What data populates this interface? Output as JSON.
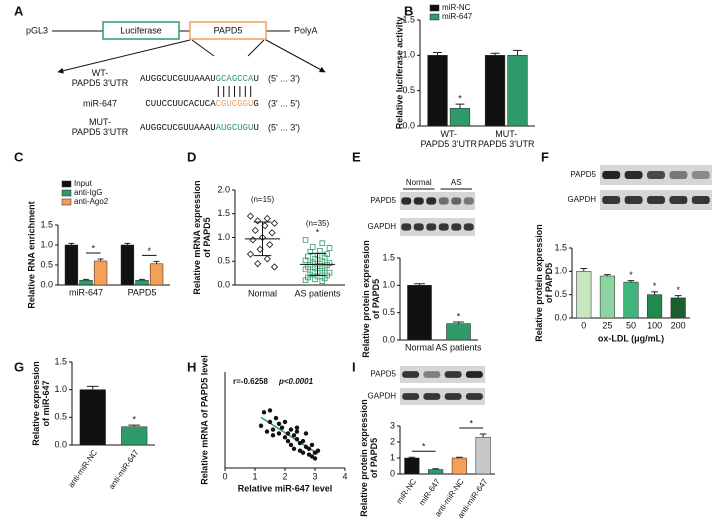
{
  "diagram": {
    "panel": "A",
    "vector": [
      "pGL3",
      "Luciferase",
      "PAPD5",
      "PolyA"
    ],
    "wt_label": "WT-\nPAPD5 3'UTR",
    "wt_sequence": [
      "AUGGCUCGUUAAAU",
      "GCAGCCA",
      "U"
    ],
    "wt_direction": "(5' ... 3')",
    "mir_label": "miR-647",
    "mir_sequence": [
      "CUUCCUUCACUCA",
      "CGUCGGU",
      "G"
    ],
    "mir_direction": "(3' ... 5')",
    "mut_label": "MUT-\nPAPD5 3'UTR",
    "mut_sequence": [
      "AUGGCUCGUUAAAU",
      "AUGCUGU",
      "U"
    ],
    "mut_direction": "(5' ... 3')"
  },
  "chart_data": [
    {
      "panel": "B",
      "type": "bar",
      "ylabel": "Relative luciferase activity",
      "categories": [
        "WT-\nPAPD5 3'UTR",
        "MUT-\nPAPD5 3'UTR"
      ],
      "series": [
        {
          "name": "miR-NC",
          "color": "#111111",
          "values": [
            1.0,
            1.0
          ],
          "errors": [
            0.04,
            0.03
          ]
        },
        {
          "name": "miR-647",
          "color": "#2f9a6a",
          "values": [
            0.25,
            1.0
          ],
          "errors": [
            0.06,
            0.07
          ],
          "significance": [
            "*",
            null
          ]
        }
      ],
      "ylim": [
        0,
        1.5
      ],
      "yticks": [
        {
          "value": 0,
          "label": "0.0"
        },
        {
          "value": 0.5,
          "label": "0.5"
        },
        {
          "value": 1,
          "label": "1.0"
        },
        {
          "value": 1.5,
          "label": "1.5"
        }
      ],
      "legend": "top-left"
    },
    {
      "panel": "C",
      "type": "bar",
      "ylabel": "Relative RNA enrichment",
      "categories": [
        "miR-647",
        "PAPD5"
      ],
      "series": [
        {
          "name": "Input",
          "color": "#111111",
          "values": [
            1.0,
            1.0
          ],
          "errors": [
            0.04,
            0.04
          ]
        },
        {
          "name": "anti-IgG",
          "color": "#2f9a6a",
          "values": [
            0.12,
            0.12
          ],
          "errors": [
            0.02,
            0.02
          ]
        },
        {
          "name": "anti-Ago2",
          "color": "#f4a05a",
          "values": [
            0.6,
            0.53
          ],
          "errors": [
            0.05,
            0.06
          ],
          "significance": [
            "*",
            "*"
          ]
        }
      ],
      "significance_style": "bracket",
      "ylim": [
        0,
        1.5
      ],
      "yticks": [
        {
          "value": 0,
          "label": "0.0"
        },
        {
          "value": 0.5,
          "label": "0.5"
        },
        {
          "value": 1,
          "label": "1.0"
        },
        {
          "value": 1.5,
          "label": "1.5"
        }
      ],
      "legend": "top-left"
    },
    {
      "panel": "D",
      "type": "dotplot",
      "ylabel": "Relative mRNA expression\nof PAPD5",
      "groups": [
        {
          "name": "Normal",
          "n_label": "(n=15)",
          "marker": "diamond",
          "color": "#111111",
          "values": [
            1.45,
            1.4,
            1.35,
            1.3,
            1.25,
            1.15,
            1.1,
            1.0,
            0.95,
            0.85,
            0.75,
            0.65,
            0.55,
            0.45,
            0.38
          ]
        },
        {
          "name": "AS patients",
          "n_label": "(n=35)",
          "marker": "square",
          "color": "#2f9a6a",
          "significance": "*",
          "values": [
            0.95,
            0.88,
            0.8,
            0.78,
            0.72,
            0.7,
            0.65,
            0.62,
            0.6,
            0.58,
            0.55,
            0.52,
            0.5,
            0.48,
            0.46,
            0.45,
            0.43,
            0.42,
            0.4,
            0.38,
            0.36,
            0.35,
            0.33,
            0.3,
            0.28,
            0.26,
            0.25,
            0.22,
            0.2,
            0.18,
            0.16,
            0.14,
            0.12,
            0.1,
            0.08
          ]
        }
      ],
      "ylim": [
        0,
        2
      ],
      "yticks": [
        {
          "value": 0,
          "label": "0.0"
        },
        {
          "value": 0.5,
          "label": "0.5"
        },
        {
          "value": 1,
          "label": "1.0"
        },
        {
          "value": 1.5,
          "label": "1.5"
        },
        {
          "value": 2,
          "label": "2.0"
        }
      ]
    },
    {
      "panel": "E",
      "type": "bar",
      "ylabel": "Relative protein expression\nof PAPD5",
      "blot": {
        "rows": [
          "PAPD5",
          "GAPDH"
        ],
        "groups": [
          "Normal",
          "AS"
        ]
      },
      "categories": [
        "Normal",
        "AS patients"
      ],
      "values": [
        1.0,
        0.3
      ],
      "errors": [
        0.03,
        0.03
      ],
      "colors": [
        "#111111",
        "#2f9a6a"
      ],
      "significance": [
        null,
        "*"
      ],
      "ylim": [
        0,
        1.5
      ],
      "yticks": [
        {
          "value": 0,
          "label": "0.0"
        },
        {
          "value": 0.5,
          "label": "0.5"
        },
        {
          "value": 1,
          "label": "1.0"
        },
        {
          "value": 1.5,
          "label": "1.5"
        }
      ]
    },
    {
      "panel": "F",
      "type": "bar",
      "ylabel": "Relative protein expression\nof PAPD5",
      "xlabel": "ox-LDL (μg/mL)",
      "blot": {
        "rows": [
          "PAPD5",
          "GAPDH"
        ]
      },
      "categories": [
        "0",
        "25",
        "50",
        "100",
        "200"
      ],
      "values": [
        1.0,
        0.9,
        0.77,
        0.5,
        0.43
      ],
      "errors": [
        0.06,
        0.03,
        0.03,
        0.06,
        0.05
      ],
      "colors": [
        "#c8e6c0",
        "#8fd3a3",
        "#3fb57c",
        "#1f8a4e",
        "#1d5e30"
      ],
      "significance": [
        null,
        null,
        "*",
        "*",
        "*"
      ],
      "ylim": [
        0,
        1.5
      ],
      "yticks": [
        {
          "value": 0,
          "label": "0.0"
        },
        {
          "value": 0.5,
          "label": "0.5"
        },
        {
          "value": 1,
          "label": "1.0"
        },
        {
          "value": 1.5,
          "label": "1.5"
        }
      ]
    },
    {
      "panel": "G",
      "type": "bar",
      "ylabel": "Relative expression\nof miR-647",
      "categories": [
        "anti-miR-NC",
        "anti-miR-647"
      ],
      "values": [
        1.0,
        0.33
      ],
      "errors": [
        0.06,
        0.03
      ],
      "colors": [
        "#111111",
        "#2f9a6a"
      ],
      "significance": [
        null,
        "*"
      ],
      "ylim": [
        0,
        1.5
      ],
      "yticks": [
        {
          "value": 0,
          "label": "0.0"
        },
        {
          "value": 0.5,
          "label": "0.5"
        },
        {
          "value": 1,
          "label": "1.0"
        },
        {
          "value": 1.5,
          "label": "1.5"
        }
      ]
    },
    {
      "panel": "H",
      "type": "scatter",
      "ylabel": "Relative mRNA of PAPD5 level",
      "xlabel": "Relative miR-647 level",
      "annotation": [
        "r=-0.6258",
        "p<0.0001"
      ],
      "color": "#111111",
      "fit_color": "#2f9a6a",
      "x": [
        1.2,
        1.3,
        1.4,
        1.5,
        1.5,
        1.6,
        1.7,
        1.8,
        1.8,
        1.9,
        2.0,
        2.0,
        2.1,
        2.1,
        2.2,
        2.2,
        2.3,
        2.3,
        2.4,
        2.4,
        2.5,
        2.5,
        2.6,
        2.6,
        2.7,
        2.7,
        2.8,
        2.8,
        2.9,
        2.9,
        3.0,
        3.0,
        3.1,
        1.6,
        2.4
      ],
      "y": [
        1.1,
        1.45,
        0.95,
        1.5,
        1.2,
        1.0,
        1.3,
        0.9,
        1.15,
        1.05,
        0.8,
        1.2,
        0.9,
        0.7,
        1.0,
        0.6,
        0.85,
        0.5,
        0.75,
        1.05,
        0.65,
        0.45,
        0.7,
        0.4,
        0.55,
        0.9,
        0.35,
        0.5,
        0.3,
        0.6,
        0.4,
        0.25,
        0.45,
        0.85,
        0.95
      ],
      "xlim": [
        0,
        4
      ],
      "xticks": [
        0,
        1,
        2,
        3,
        4
      ],
      "ylim": [
        0,
        2.5
      ]
    },
    {
      "panel": "I",
      "type": "bar",
      "ylabel": "Relative protein expression\nof PAPD5",
      "blot": {
        "rows": [
          "PAPD5",
          "GAPDH"
        ]
      },
      "categories": [
        "miR-NC",
        "miR-647",
        "anti-miR-NC",
        "anti-miR-647"
      ],
      "values": [
        1.0,
        0.28,
        1.0,
        2.3
      ],
      "errors": [
        0.05,
        0.05,
        0.05,
        0.2
      ],
      "colors": [
        "#111111",
        "#2f9a6a",
        "#f4a05a",
        "#c8c8c8"
      ],
      "significance": [
        null,
        "*",
        null,
        "*"
      ],
      "significance_style": "bracket",
      "ylim": [
        0,
        3
      ],
      "yticks": [
        0,
        1,
        2,
        3
      ]
    }
  ]
}
